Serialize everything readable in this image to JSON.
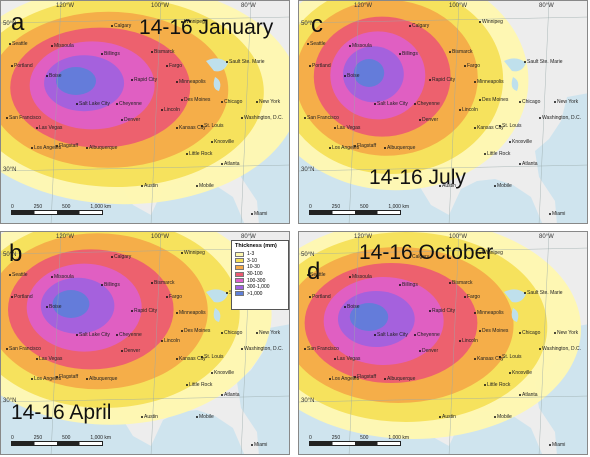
{
  "colors": {
    "ocean": "#cfe4ee",
    "land": "#ededed",
    "lake": "#bfe0ec"
  },
  "legend": {
    "title": "Thickness (mm)",
    "items": [
      {
        "label": "1-3",
        "color": "#fff8b0"
      },
      {
        "label": "3-10",
        "color": "#f5df56"
      },
      {
        "label": "10-30",
        "color": "#f4a948"
      },
      {
        "label": "30-100",
        "color": "#ec5a72"
      },
      {
        "label": "100-300",
        "color": "#de5fc9"
      },
      {
        "label": "300-1,000",
        "color": "#a062e0"
      },
      {
        "label": ">1,000",
        "color": "#5e7fd9"
      }
    ]
  },
  "graticule": {
    "lon_labels": [
      "120°W",
      "100°W",
      "80°W"
    ],
    "lat_labels": [
      "50°N",
      "30°N"
    ]
  },
  "scale_bar": [
    "0",
    "250",
    "500",
    "1,000 km"
  ],
  "cities": [
    {
      "name": "Calgary"
    },
    {
      "name": "Winnipeg"
    },
    {
      "name": "Seattle"
    },
    {
      "name": "Portland"
    },
    {
      "name": "Missoula"
    },
    {
      "name": "Billings"
    },
    {
      "name": "Bismarck"
    },
    {
      "name": "Fargo"
    },
    {
      "name": "Boise"
    },
    {
      "name": "Rapid City"
    },
    {
      "name": "Minneapolis"
    },
    {
      "name": "Sault Ste. Marie"
    },
    {
      "name": "Salt Lake City"
    },
    {
      "name": "Cheyenne"
    },
    {
      "name": "Des Moines"
    },
    {
      "name": "Chicago"
    },
    {
      "name": "San Francisco"
    },
    {
      "name": "Denver"
    },
    {
      "name": "Lincoln"
    },
    {
      "name": "New York"
    },
    {
      "name": "Kansas City"
    },
    {
      "name": "St. Louis"
    },
    {
      "name": "Washington, D.C."
    },
    {
      "name": "Las Vegas"
    },
    {
      "name": "Los Angeles"
    },
    {
      "name": "Flagstaff"
    },
    {
      "name": "Albuquerque"
    },
    {
      "name": "Knoxville"
    },
    {
      "name": "Little Rock"
    },
    {
      "name": "Atlanta"
    },
    {
      "name": "Austin"
    },
    {
      "name": "Mobile"
    },
    {
      "name": "Miami"
    }
  ],
  "panels": [
    {
      "letter": "a",
      "title": "14-16 January"
    },
    {
      "letter": "c",
      "title": "14-16 July"
    },
    {
      "letter": "b",
      "title": "14-16 April"
    },
    {
      "letter": "d",
      "title": "14-16 October"
    }
  ]
}
